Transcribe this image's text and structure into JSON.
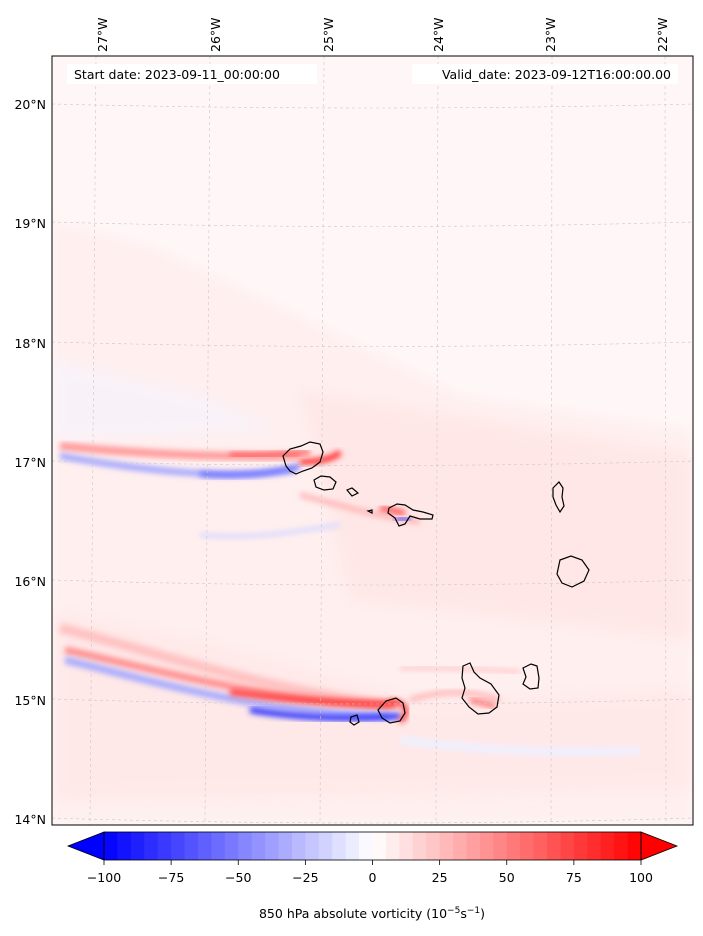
{
  "header": {
    "start_label": "Start date: 2023-09-11_00:00:00",
    "valid_label": "Valid_date: 2023-09-12T16:00:00.00"
  },
  "map": {
    "lon_ticks": [
      "27°W",
      "26°W",
      "25°W",
      "24°W",
      "23°W",
      "22°W"
    ],
    "lat_ticks": [
      "20°N",
      "19°N",
      "18°N",
      "17°N",
      "16°N",
      "15°N",
      "14°N"
    ],
    "colors": {
      "negative": "#0000ff",
      "positive": "#ff0000",
      "zero": "#ffffff",
      "coast": "#000000"
    }
  },
  "colorbar": {
    "label_prefix": "850 hPa absolute vorticity (10",
    "exp1": "−5",
    "label_mid": "s",
    "exp2": "−1",
    "label_suffix": ")",
    "min": -100,
    "max": 100,
    "ticks": [
      "−100",
      "−75",
      "−50",
      "−25",
      "0",
      "25",
      "50",
      "75",
      "100"
    ]
  }
}
